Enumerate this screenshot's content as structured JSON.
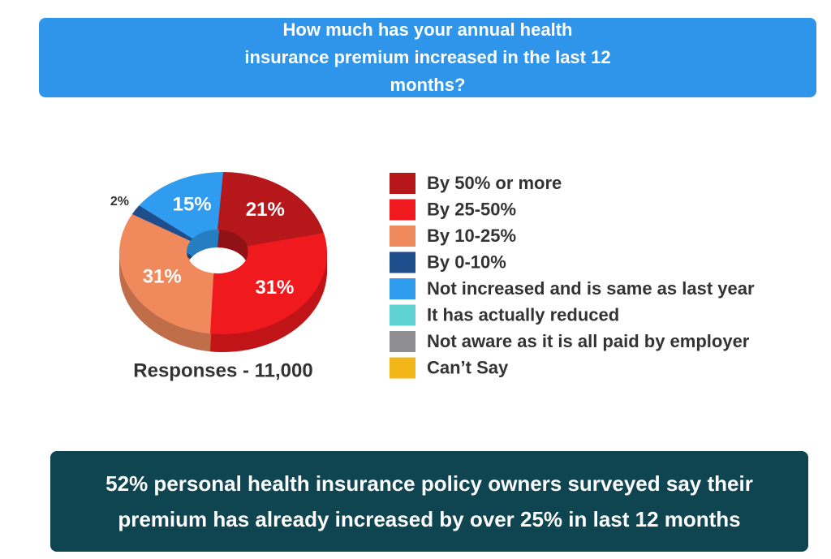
{
  "chart_data": {
    "type": "pie",
    "title": "How much has your annual health insurance premium increased in the last 12 months?",
    "categories": [
      "By 50% or more",
      "By 25-50%",
      "By 10-25%",
      "By 0-10%",
      "Not increased and is same as last year",
      "It has actually reduced",
      "Not aware as it is all paid by employer",
      "Can’t Say"
    ],
    "values": [
      21,
      31,
      31,
      2,
      15,
      0,
      0,
      0
    ],
    "value_labels": [
      "21%",
      "31%",
      "31%",
      "2%",
      "15%",
      null,
      null,
      null
    ],
    "colors": [
      "#b5171b",
      "#f0191e",
      "#f08a5d",
      "#1f4e8c",
      "#2f9cf0",
      "#5fd3d3",
      "#8e8e93",
      "#f2b619"
    ],
    "note": "Responses - 11,000",
    "annotation": "52% personal health insurance policy owners surveyed say their premium has already increased by over 25% in last 12 months"
  }
}
